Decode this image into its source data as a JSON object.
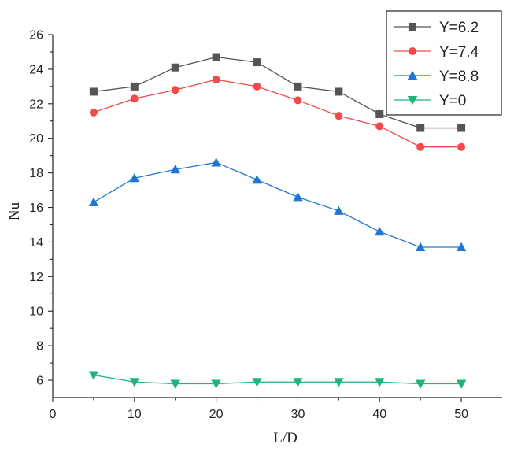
{
  "chart_data": {
    "type": "line",
    "title": "",
    "xlabel": "L/D",
    "ylabel": "Nu",
    "xlim": [
      0,
      55
    ],
    "ylim": [
      5,
      26
    ],
    "x_ticks": [
      0,
      10,
      20,
      30,
      40,
      50
    ],
    "y_ticks": [
      6,
      8,
      10,
      12,
      14,
      16,
      18,
      20,
      22,
      24,
      26
    ],
    "x": [
      5,
      10,
      15,
      20,
      25,
      30,
      35,
      40,
      45,
      50
    ],
    "legend_position": "top-right",
    "series": [
      {
        "name": "Y=6.2",
        "color": "#555555",
        "marker": "square",
        "values": [
          22.7,
          23.0,
          24.1,
          24.7,
          24.4,
          23.0,
          22.7,
          21.4,
          20.6,
          20.6
        ]
      },
      {
        "name": "Y=7.4",
        "color": "#f04a4a",
        "marker": "circle",
        "values": [
          21.5,
          22.3,
          22.8,
          23.4,
          23.0,
          22.2,
          21.3,
          20.7,
          19.5,
          19.5
        ]
      },
      {
        "name": "Y=8.8",
        "color": "#1f77d4",
        "marker": "triangle-up",
        "values": [
          16.3,
          17.7,
          18.2,
          18.6,
          17.6,
          16.6,
          15.8,
          14.6,
          13.7,
          13.7
        ]
      },
      {
        "name": "Y=0",
        "color": "#1fb37a",
        "marker": "triangle-down",
        "values": [
          6.3,
          5.9,
          5.8,
          5.8,
          5.9,
          5.9,
          5.9,
          5.9,
          5.8,
          5.8
        ]
      }
    ]
  }
}
